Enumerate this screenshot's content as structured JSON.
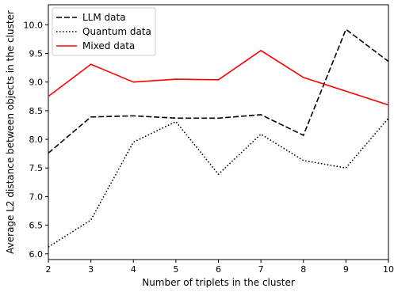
{
  "chart_data": {
    "type": "line",
    "xlabel": "Number of triplets in the cluster",
    "ylabel": "Average L2 distance between objects in the cluster",
    "xlim": [
      2,
      10
    ],
    "ylim": [
      5.9,
      10.35
    ],
    "x": [
      2,
      3,
      4,
      5,
      6,
      7,
      8,
      9,
      10
    ],
    "xticks": [
      "2",
      "3",
      "4",
      "5",
      "6",
      "7",
      "8",
      "9",
      "10"
    ],
    "yticks": [
      6.0,
      6.5,
      7.0,
      7.5,
      8.0,
      8.5,
      9.0,
      9.5,
      10.0
    ],
    "ytick_labels": [
      "6.0",
      "6.5",
      "7.0",
      "7.5",
      "8.0",
      "8.5",
      "9.0",
      "9.5",
      "10.0"
    ],
    "grid": false,
    "legend_position": "top-left",
    "series": [
      {
        "name": "LLM data",
        "color": "#000000",
        "style": "dashed",
        "values": [
          7.76,
          8.39,
          8.41,
          8.37,
          8.37,
          8.43,
          8.07,
          9.92,
          9.36
        ]
      },
      {
        "name": "Quantum data",
        "color": "#000000",
        "style": "dotted",
        "values": [
          6.12,
          6.59,
          7.95,
          8.31,
          7.39,
          8.09,
          7.63,
          7.5,
          8.37
        ]
      },
      {
        "name": "Mixed data",
        "color": "#ff0000",
        "style": "solid",
        "values": [
          8.75,
          9.31,
          9.0,
          9.05,
          9.04,
          9.55,
          9.08,
          8.84,
          8.6
        ]
      }
    ]
  }
}
